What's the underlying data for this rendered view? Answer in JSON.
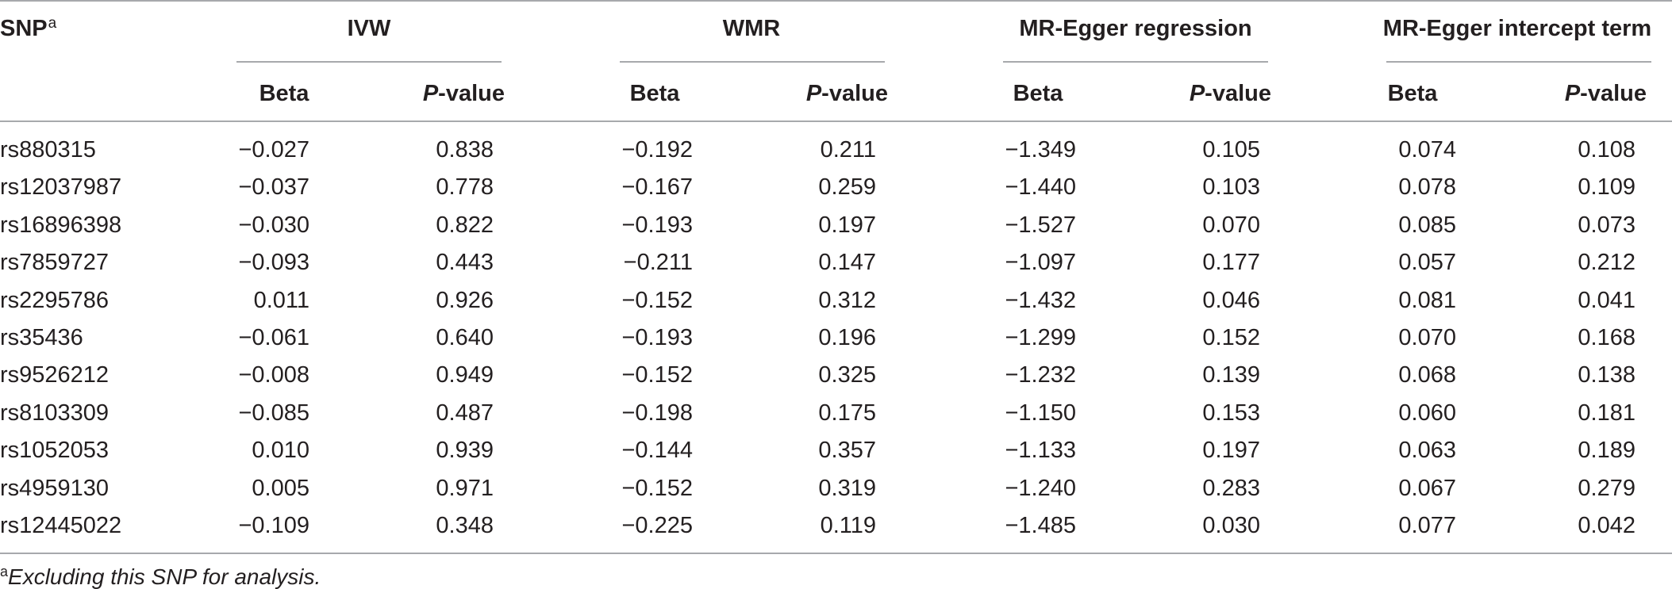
{
  "table": {
    "snp_header": "SNP",
    "snp_header_sup": "a",
    "groups": [
      {
        "label": "IVW"
      },
      {
        "label": "WMR"
      },
      {
        "label": "MR-Egger regression"
      },
      {
        "label": "MR-Egger intercept term"
      }
    ],
    "sub_beta": "Beta",
    "sub_p_italic": "P",
    "sub_p_rest": "-value",
    "rows": [
      {
        "snp": "rs880315",
        "ivw_beta": "−0.027",
        "ivw_p": "0.838",
        "wmr_beta": "−0.192",
        "wmr_p": "0.211",
        "egger_beta": "−1.349",
        "egger_p": "0.105",
        "int_beta": "0.074",
        "int_p": "0.108"
      },
      {
        "snp": "rs12037987",
        "ivw_beta": "−0.037",
        "ivw_p": "0.778",
        "wmr_beta": "−0.167",
        "wmr_p": "0.259",
        "egger_beta": "−1.440",
        "egger_p": "0.103",
        "int_beta": "0.078",
        "int_p": "0.109"
      },
      {
        "snp": "rs16896398",
        "ivw_beta": "−0.030",
        "ivw_p": "0.822",
        "wmr_beta": "−0.193",
        "wmr_p": "0.197",
        "egger_beta": "−1.527",
        "egger_p": "0.070",
        "int_beta": "0.085",
        "int_p": "0.073"
      },
      {
        "snp": "rs7859727",
        "ivw_beta": "−0.093",
        "ivw_p": "0.443",
        "wmr_beta": "−0.211",
        "wmr_p": "0.147",
        "egger_beta": "−1.097",
        "egger_p": "0.177",
        "int_beta": "0.057",
        "int_p": "0.212"
      },
      {
        "snp": "rs2295786",
        "ivw_beta": "0.011",
        "ivw_p": "0.926",
        "wmr_beta": "−0.152",
        "wmr_p": "0.312",
        "egger_beta": "−1.432",
        "egger_p": "0.046",
        "int_beta": "0.081",
        "int_p": "0.041"
      },
      {
        "snp": "rs35436",
        "ivw_beta": "−0.061",
        "ivw_p": "0.640",
        "wmr_beta": "−0.193",
        "wmr_p": "0.196",
        "egger_beta": "−1.299",
        "egger_p": "0.152",
        "int_beta": "0.070",
        "int_p": "0.168"
      },
      {
        "snp": "rs9526212",
        "ivw_beta": "−0.008",
        "ivw_p": "0.949",
        "wmr_beta": "−0.152",
        "wmr_p": "0.325",
        "egger_beta": "−1.232",
        "egger_p": "0.139",
        "int_beta": "0.068",
        "int_p": "0.138"
      },
      {
        "snp": "rs8103309",
        "ivw_beta": "−0.085",
        "ivw_p": "0.487",
        "wmr_beta": "−0.198",
        "wmr_p": "0.175",
        "egger_beta": "−1.150",
        "egger_p": "0.153",
        "int_beta": "0.060",
        "int_p": "0.181"
      },
      {
        "snp": "rs1052053",
        "ivw_beta": "0.010",
        "ivw_p": "0.939",
        "wmr_beta": "−0.144",
        "wmr_p": "0.357",
        "egger_beta": "−1.133",
        "egger_p": "0.197",
        "int_beta": "0.063",
        "int_p": "0.189"
      },
      {
        "snp": "rs4959130",
        "ivw_beta": "0.005",
        "ivw_p": "0.971",
        "wmr_beta": "−0.152",
        "wmr_p": "0.319",
        "egger_beta": "−1.240",
        "egger_p": "0.283",
        "int_beta": "0.067",
        "int_p": "0.279"
      },
      {
        "snp": "rs12445022",
        "ivw_beta": "−0.109",
        "ivw_p": "0.348",
        "wmr_beta": "−0.225",
        "wmr_p": "0.119",
        "egger_beta": "−1.485",
        "egger_p": "0.030",
        "int_beta": "0.077",
        "int_p": "0.042"
      }
    ]
  },
  "footnote": {
    "sup": "a",
    "text": "Excluding this SNP for analysis."
  }
}
